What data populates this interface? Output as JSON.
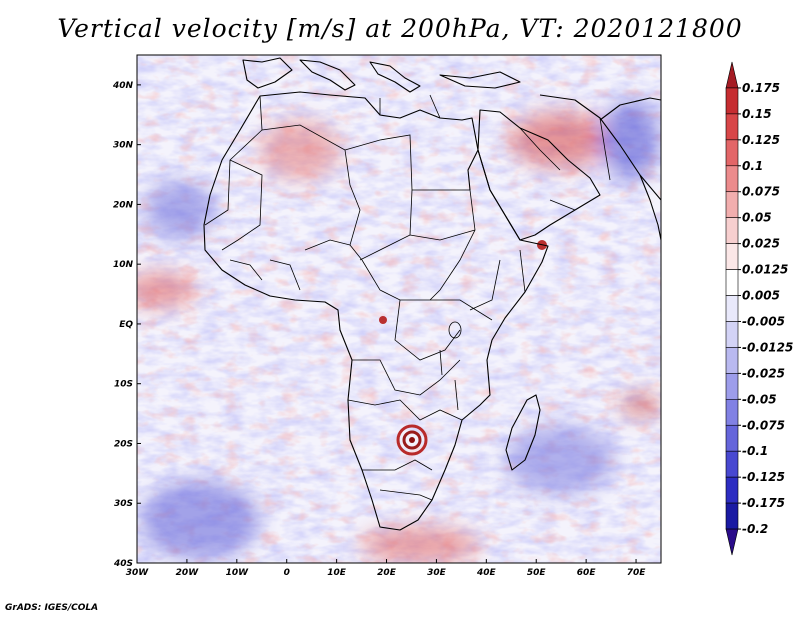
{
  "title": "Vertical velocity [m/s] at 200hPa, VT: 2020121800",
  "footer": "GrADS: IGES/COLA",
  "map": {
    "lon_range": [
      -30,
      75
    ],
    "lat_range": [
      -40,
      45
    ],
    "lon_ticks": [
      {
        "value": -30,
        "label": "30W"
      },
      {
        "value": -20,
        "label": "20W"
      },
      {
        "value": -10,
        "label": "10W"
      },
      {
        "value": 0,
        "label": "0"
      },
      {
        "value": 10,
        "label": "10E"
      },
      {
        "value": 20,
        "label": "20E"
      },
      {
        "value": 30,
        "label": "30E"
      },
      {
        "value": 40,
        "label": "40E"
      },
      {
        "value": 50,
        "label": "50E"
      },
      {
        "value": 60,
        "label": "60E"
      },
      {
        "value": 70,
        "label": "70E"
      }
    ],
    "lat_ticks": [
      {
        "value": 40,
        "label": "40N"
      },
      {
        "value": 30,
        "label": "30N"
      },
      {
        "value": 20,
        "label": "20N"
      },
      {
        "value": 10,
        "label": "10N"
      },
      {
        "value": 0,
        "label": "EQ"
      },
      {
        "value": -10,
        "label": "10S"
      },
      {
        "value": -20,
        "label": "20S"
      },
      {
        "value": -30,
        "label": "30S"
      },
      {
        "value": -40,
        "label": "40S"
      }
    ]
  },
  "colorbar": {
    "colors": [
      "#a51c24",
      "#c62d31",
      "#d84648",
      "#e36668",
      "#ec8b8c",
      "#f2aeae",
      "#f7cfcf",
      "#fbe7e7",
      "#ffffff",
      "#e9e9fb",
      "#d3d3f6",
      "#b9b9f0",
      "#9d9deb",
      "#8181e4",
      "#6565db",
      "#4848d1",
      "#2d2dc2",
      "#1a1aa3",
      "#2a0c8a"
    ],
    "labels": [
      "0.175",
      "0.15",
      "0.125",
      "0.1",
      "0.075",
      "0.05",
      "0.025",
      "0.0125",
      "0.005",
      "-0.005",
      "-0.0125",
      "-0.025",
      "-0.05",
      "-0.075",
      "-0.1",
      "-0.125",
      "-0.175",
      "-0.2"
    ]
  }
}
